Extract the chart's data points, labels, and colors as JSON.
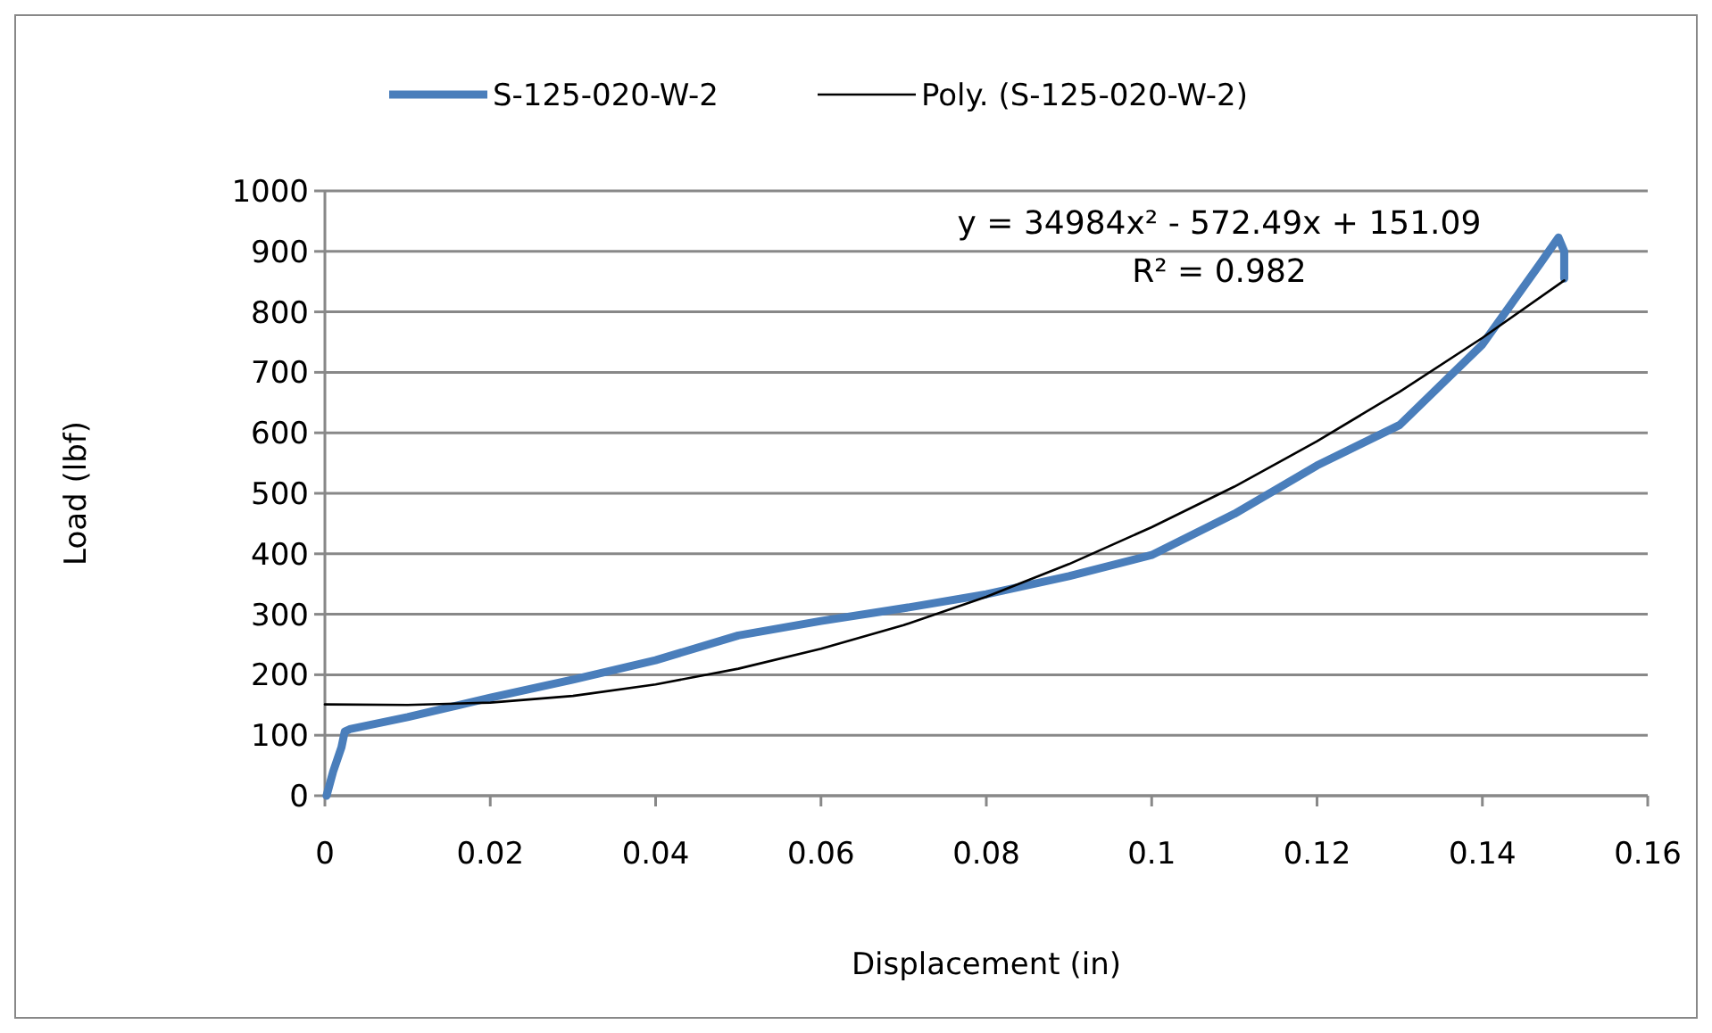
{
  "chart_data": {
    "type": "line",
    "xlabel": "Displacement (in)",
    "ylabel": "Load (lbf)",
    "xlim": [
      0,
      0.16
    ],
    "xticks": [
      0,
      0.02,
      0.04,
      0.06,
      0.08,
      0.1,
      0.12,
      0.14,
      0.16
    ],
    "ylim": [
      0,
      1000
    ],
    "yticks": [
      0,
      100,
      200,
      300,
      400,
      500,
      600,
      700,
      800,
      900,
      1000
    ],
    "grid": "y",
    "legend": "top",
    "marker": "none",
    "line_style": "solid",
    "annotations": [
      "y = 34984x² - 572.49x + 151.09",
      "R² = 0.982"
    ],
    "series": [
      {
        "name": "S-125-020-W-2",
        "color": "#4a7ebb",
        "x": [
          0.0002,
          0.001,
          0.002,
          0.0024,
          0.003,
          0.01,
          0.02,
          0.03,
          0.04,
          0.05,
          0.06,
          0.07,
          0.08,
          0.09,
          0.1,
          0.11,
          0.12,
          0.13,
          0.14,
          0.147,
          0.1492,
          0.1499,
          0.1499
        ],
        "values": [
          0,
          40,
          80,
          106,
          110,
          130,
          162,
          192,
          224,
          265,
          289,
          310,
          333,
          363,
          398,
          466,
          546,
          613,
          746,
          880,
          923,
          900,
          855
        ]
      },
      {
        "name": "Poly. (S-125-020-W-2)",
        "color": "#000000",
        "x": [
          0,
          0.01,
          0.02,
          0.03,
          0.04,
          0.05,
          0.06,
          0.07,
          0.08,
          0.09,
          0.1,
          0.11,
          0.12,
          0.13,
          0.14,
          0.1499
        ],
        "values": [
          151,
          150,
          154,
          165,
          184,
          210,
          243,
          282,
          329,
          383,
          444,
          511,
          586,
          668,
          757,
          852
        ]
      }
    ]
  }
}
